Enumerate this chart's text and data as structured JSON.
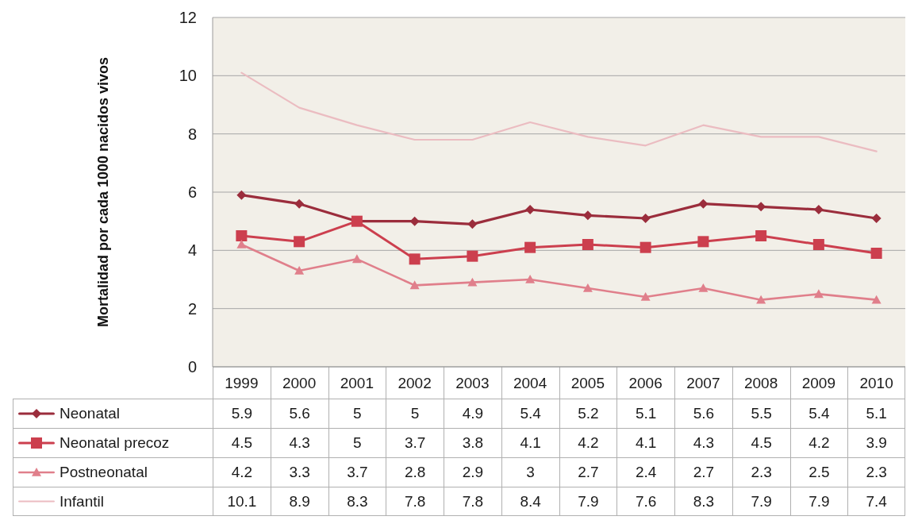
{
  "chart_data": {
    "type": "line",
    "ylabel": "Mortalidad por cada 1000 nacidos vivos",
    "categories": [
      "1999",
      "2000",
      "2001",
      "2002",
      "2003",
      "2004",
      "2005",
      "2006",
      "2007",
      "2008",
      "2009",
      "2010"
    ],
    "series": [
      {
        "name": "Neonatal",
        "color": "#9b2d3c",
        "marker": "diamond",
        "values": [
          5.9,
          5.6,
          5,
          5,
          4.9,
          5.4,
          5.2,
          5.1,
          5.6,
          5.5,
          5.4,
          5.1
        ]
      },
      {
        "name": "Neonatal precoz",
        "color": "#cc3f4e",
        "marker": "square",
        "values": [
          4.5,
          4.3,
          5,
          3.7,
          3.8,
          4.1,
          4.2,
          4.1,
          4.3,
          4.5,
          4.2,
          3.9
        ]
      },
      {
        "name": "Postneonatal",
        "color": "#e07f8b",
        "marker": "triangle",
        "values": [
          4.2,
          3.3,
          3.7,
          2.8,
          2.9,
          3,
          2.7,
          2.4,
          2.7,
          2.3,
          2.5,
          2.3
        ]
      },
      {
        "name": "Infantil",
        "color": "#ebbcc1",
        "marker": "none",
        "values": [
          10.1,
          8.9,
          8.3,
          7.8,
          7.8,
          8.4,
          7.9,
          7.6,
          8.3,
          7.9,
          7.9,
          7.4
        ]
      }
    ],
    "ylim": [
      0,
      12
    ],
    "yticks": [
      0,
      2,
      4,
      6,
      8,
      10,
      12
    ],
    "grid": "y",
    "legend": "bottom",
    "data_labels": true
  }
}
